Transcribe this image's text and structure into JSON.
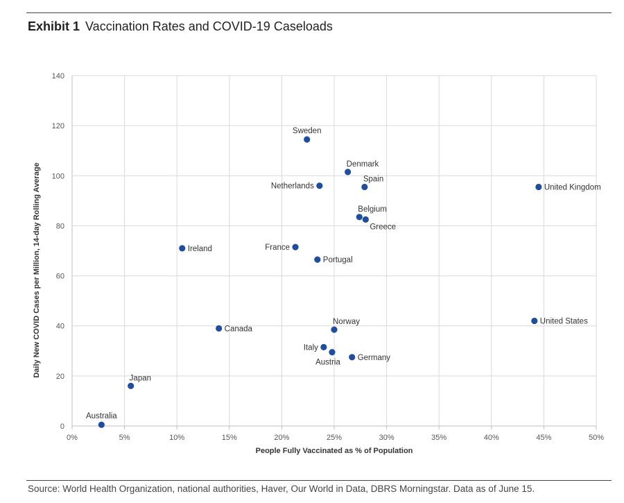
{
  "header": {
    "exhibit": "Exhibit 1",
    "title": "Vaccination Rates and COVID-19 Caseloads"
  },
  "footer": {
    "source": "Source: World Health Organization, national authorities, Haver, Our World in Data, DBRS Morningstar. Data as of June 15."
  },
  "colors": {
    "marker": "#1f4e9c",
    "grid": "#d9d9d9",
    "axis": "#bfbfbf"
  },
  "chart_data": {
    "type": "scatter",
    "xlabel": "People Fully Vaccinated as % of Population",
    "ylabel": "Daily New COVID Cases per Million, 14-day Rolling Average",
    "xlim": [
      0,
      50
    ],
    "ylim": [
      0,
      140
    ],
    "x_ticks": [
      0,
      5,
      10,
      15,
      20,
      25,
      30,
      35,
      40,
      45,
      50
    ],
    "x_tick_labels": [
      "0%",
      "5%",
      "10%",
      "15%",
      "20%",
      "25%",
      "30%",
      "35%",
      "40%",
      "45%",
      "50%"
    ],
    "y_ticks": [
      0,
      20,
      40,
      60,
      80,
      100,
      120,
      140
    ],
    "y_tick_labels": [
      "0",
      "20",
      "40",
      "60",
      "80",
      "100",
      "120",
      "140"
    ],
    "grid": true,
    "points": [
      {
        "label": "Australia",
        "x": 2.8,
        "y": 0.5,
        "pos": "above"
      },
      {
        "label": "Japan",
        "x": 5.6,
        "y": 16,
        "pos": "above-right"
      },
      {
        "label": "Ireland",
        "x": 10.5,
        "y": 71,
        "pos": "right"
      },
      {
        "label": "Canada",
        "x": 14,
        "y": 39,
        "pos": "right"
      },
      {
        "label": "France",
        "x": 21.3,
        "y": 71.5,
        "pos": "left"
      },
      {
        "label": "Sweden",
        "x": 22.4,
        "y": 114.5,
        "pos": "above"
      },
      {
        "label": "Netherlands",
        "x": 23.6,
        "y": 96,
        "pos": "left"
      },
      {
        "label": "Portugal",
        "x": 23.4,
        "y": 66.5,
        "pos": "right"
      },
      {
        "label": "Italy",
        "x": 24,
        "y": 31.5,
        "pos": "left"
      },
      {
        "label": "Austria",
        "x": 24.8,
        "y": 29.5,
        "pos": "below"
      },
      {
        "label": "Norway",
        "x": 25,
        "y": 38.5,
        "pos": "above-right"
      },
      {
        "label": "Denmark",
        "x": 26.3,
        "y": 101.5,
        "pos": "above-right"
      },
      {
        "label": "Germany",
        "x": 26.7,
        "y": 27.5,
        "pos": "right"
      },
      {
        "label": "Belgium",
        "x": 27.4,
        "y": 83.5,
        "pos": "above-right"
      },
      {
        "label": "Spain",
        "x": 27.9,
        "y": 95.5,
        "pos": "above-right"
      },
      {
        "label": "Greece",
        "x": 28,
        "y": 82.5,
        "pos": "below-right"
      },
      {
        "label": "United States",
        "x": 44.1,
        "y": 42,
        "pos": "right"
      },
      {
        "label": "United Kingdom",
        "x": 44.5,
        "y": 95.5,
        "pos": "right"
      }
    ]
  }
}
